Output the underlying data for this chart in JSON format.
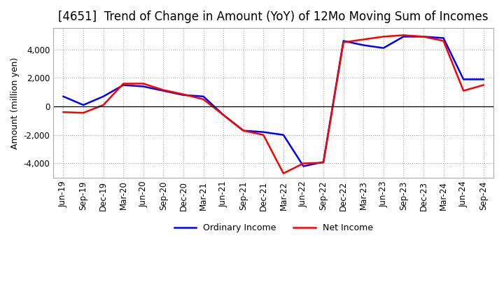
{
  "title": "[4651]  Trend of Change in Amount (YoY) of 12Mo Moving Sum of Incomes",
  "ylabel": "Amount (million yen)",
  "ylim": [
    -5000,
    5500
  ],
  "yticks": [
    -4000,
    -2000,
    0,
    2000,
    4000
  ],
  "x_labels": [
    "Jun-19",
    "Sep-19",
    "Dec-19",
    "Mar-20",
    "Jun-20",
    "Sep-20",
    "Dec-20",
    "Mar-21",
    "Jun-21",
    "Sep-21",
    "Dec-21",
    "Mar-22",
    "Jun-22",
    "Sep-22",
    "Dec-22",
    "Mar-23",
    "Jun-23",
    "Sep-23",
    "Dec-23",
    "Mar-24",
    "Jun-24",
    "Sep-24"
  ],
  "ordinary_income": [
    700,
    100,
    700,
    1500,
    1400,
    1100,
    800,
    700,
    -600,
    -1700,
    -1800,
    -2000,
    -4200,
    -3900,
    4600,
    4300,
    4100,
    4900,
    4900,
    4800,
    1900,
    1900
  ],
  "net_income": [
    -400,
    -450,
    100,
    1600,
    1600,
    1150,
    850,
    500,
    -600,
    -1700,
    -2000,
    -4700,
    -4000,
    -3950,
    4500,
    4700,
    4900,
    5000,
    4900,
    4600,
    1100,
    1500
  ],
  "ordinary_income_color": "#0000ff",
  "net_income_color": "#ff0000",
  "line_width": 1.8,
  "grid_color": "#aaaaaa",
  "background_color": "#ffffff",
  "title_fontsize": 12,
  "label_fontsize": 9,
  "tick_fontsize": 8.5
}
